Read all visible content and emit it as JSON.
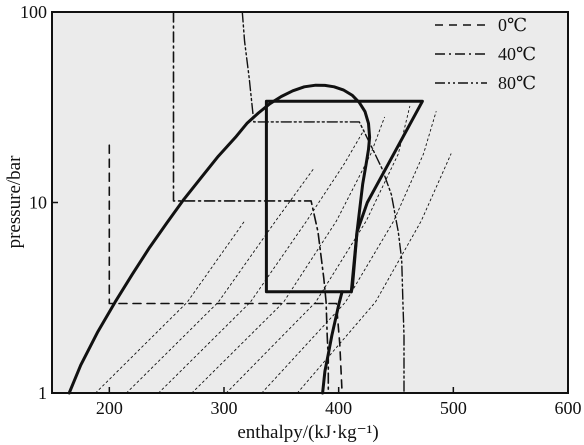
{
  "chart_data": {
    "type": "line",
    "title": "",
    "xlabel": "enthalpy/(kJ·kg⁻¹)",
    "ylabel": "pressure/bar",
    "xlim": [
      150,
      600
    ],
    "ylim": [
      1,
      100
    ],
    "yscale": "log",
    "xticks": [
      200,
      300,
      400,
      500,
      600
    ],
    "xtick_labels": [
      "200",
      "300",
      "400",
      "500",
      "600"
    ],
    "yticks": [
      1,
      10,
      100
    ],
    "ytick_labels": [
      "1",
      "10",
      "100"
    ],
    "grid": false,
    "legend_position": "top-right",
    "legend": [
      {
        "label": "0℃",
        "dash": "dashed"
      },
      {
        "label": "40℃",
        "dash": "dashdot"
      },
      {
        "label": "80℃",
        "dash": "dashdotdot"
      }
    ],
    "series": [
      {
        "name": "0℃",
        "style": "dashed",
        "points": [
          [
            200,
            20
          ],
          [
            200,
            2.95
          ],
          [
            398,
            2.95
          ],
          [
            401,
            1.8
          ],
          [
            403,
            1
          ]
        ]
      },
      {
        "name": "40℃",
        "style": "dashdot",
        "points": [
          [
            256,
            100
          ],
          [
            256,
            10.2
          ],
          [
            355,
            10.2
          ],
          [
            376,
            10.2
          ],
          [
            378,
            9
          ],
          [
            382,
            7
          ],
          [
            385,
            5
          ],
          [
            387,
            4
          ],
          [
            389,
            3
          ],
          [
            390,
            2
          ],
          [
            391,
            1.5
          ],
          [
            391,
            1
          ]
        ]
      },
      {
        "name": "80℃",
        "style": "dashdotdot",
        "points": [
          [
            316,
            100
          ],
          [
            318,
            70
          ],
          [
            322,
            45
          ],
          [
            326,
            26.5
          ],
          [
            418,
            26.5
          ],
          [
            428,
            20
          ],
          [
            438,
            15
          ],
          [
            446,
            11
          ],
          [
            452,
            7
          ],
          [
            455,
            5
          ],
          [
            456,
            3
          ],
          [
            457,
            2
          ],
          [
            457,
            1
          ]
        ]
      },
      {
        "name": "",
        "style": "solid-heavy",
        "points": [
          [
            165,
            1
          ],
          [
            175,
            1.4
          ],
          [
            190,
            2.1
          ],
          [
            205,
            3.0
          ],
          [
            220,
            4.2
          ],
          [
            235,
            5.8
          ],
          [
            250,
            7.8
          ],
          [
            265,
            10.4
          ],
          [
            280,
            13.5
          ],
          [
            295,
            17.5
          ],
          [
            310,
            22
          ],
          [
            320,
            26
          ],
          [
            330,
            29.5
          ],
          [
            340,
            33
          ],
          [
            350,
            36
          ],
          [
            360,
            38.6
          ],
          [
            370,
            40.5
          ],
          [
            380,
            41.3
          ],
          [
            388,
            41.2
          ],
          [
            396,
            40.5
          ],
          [
            404,
            39
          ],
          [
            412,
            36.5
          ],
          [
            418,
            33.5
          ],
          [
            423,
            30
          ],
          [
            426,
            26
          ],
          [
            427,
            22
          ],
          [
            426,
            19
          ],
          [
            424,
            16
          ],
          [
            421,
            12.5
          ],
          [
            419,
            10
          ],
          [
            416,
            7
          ],
          [
            414,
            5
          ],
          [
            412,
            3.6
          ],
          [
            411,
            3.4
          ]
        ]
      },
      {
        "name": "",
        "style": "solid-heavy",
        "points": [
          [
            337,
            3.4
          ],
          [
            337,
            34
          ],
          [
            473,
            34
          ],
          [
            425,
            10
          ],
          [
            416,
            7
          ],
          [
            411,
            3.4
          ],
          [
            337,
            3.4
          ]
        ]
      },
      {
        "name": "",
        "style": "solid-heavy",
        "points": [
          [
            386,
            1
          ],
          [
            388,
            1.3
          ],
          [
            391,
            1.6
          ],
          [
            394,
            2
          ],
          [
            397,
            2.4
          ],
          [
            400,
            2.9
          ],
          [
            403,
            3.4
          ]
        ]
      },
      {
        "name": "",
        "style": "dotted-thin",
        "points": [
          [
            188,
            1
          ],
          [
            268,
            3
          ],
          [
            318,
            8
          ]
        ]
      },
      {
        "name": "",
        "style": "dotted-thin",
        "points": [
          [
            215,
            1
          ],
          [
            295,
            3
          ],
          [
            345,
            8
          ],
          [
            378,
            15
          ]
        ]
      },
      {
        "name": "",
        "style": "dotted-thin",
        "points": [
          [
            243,
            1
          ],
          [
            323,
            3
          ],
          [
            372,
            8
          ],
          [
            405,
            16
          ],
          [
            422,
            24
          ]
        ]
      },
      {
        "name": "",
        "style": "dotted-thin",
        "points": [
          [
            272,
            1
          ],
          [
            352,
            3
          ],
          [
            398,
            8
          ],
          [
            428,
            18
          ],
          [
            440,
            28
          ]
        ]
      },
      {
        "name": "",
        "style": "dotted-thin",
        "points": [
          [
            302,
            1
          ],
          [
            380,
            3
          ],
          [
            424,
            8
          ],
          [
            452,
            18
          ],
          [
            462,
            32
          ]
        ]
      },
      {
        "name": "",
        "style": "dotted-thin",
        "points": [
          [
            333,
            1
          ],
          [
            406,
            3
          ],
          [
            448,
            8
          ],
          [
            474,
            18
          ],
          [
            485,
            30
          ]
        ]
      },
      {
        "name": "",
        "style": "dotted-thin",
        "points": [
          [
            364,
            1
          ],
          [
            432,
            3
          ],
          [
            472,
            8
          ],
          [
            498,
            18
          ]
        ]
      }
    ]
  }
}
